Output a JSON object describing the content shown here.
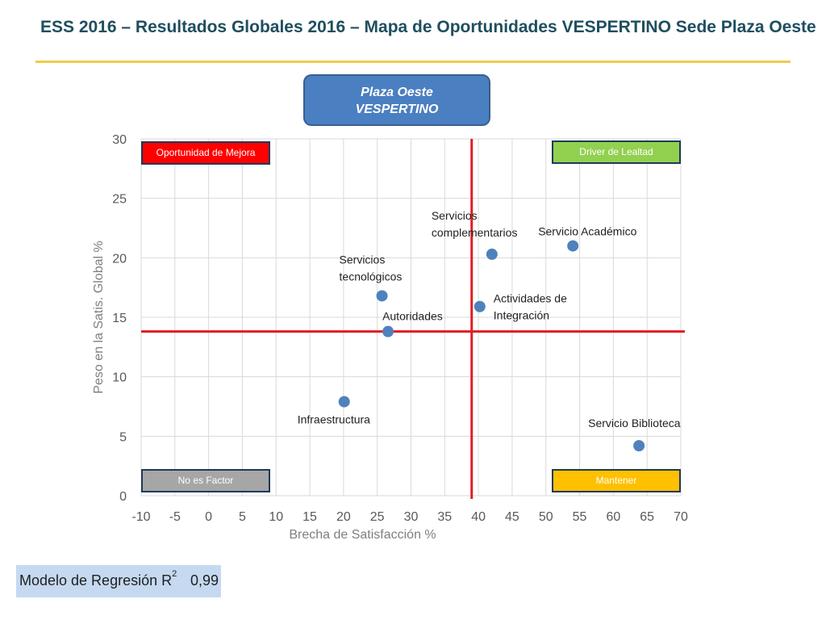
{
  "slide": {
    "title": "ESS 2016 – Resultados Globales 2016 – Mapa de Oportunidades VESPERTINO Sede Plaza Oeste",
    "badge_line1": "Plaza Oeste",
    "badge_line2": "VESPERTINO"
  },
  "model": {
    "label": "Modelo de Regresión R",
    "superscript": "2",
    "value": "0,99"
  },
  "quadrants": {
    "top_left": {
      "label": "Oportunidad de Mejora",
      "color": "#ff0000",
      "text_color": "#ffffff"
    },
    "top_right": {
      "label": "Driver de Lealtad",
      "color": "#92d050",
      "text_color": "#ffffff"
    },
    "bottom_left": {
      "label": "No es Factor",
      "color": "#a6a6a6",
      "text_color": "#ffffff"
    },
    "bottom_right": {
      "label": "Mantener",
      "color": "#ffc000",
      "text_color": "#ffffff"
    }
  },
  "chart_data": {
    "type": "scatter",
    "title": "",
    "xlabel": "Brecha de Satisfacción %",
    "ylabel": "Peso en la Satis. Global %",
    "xlim": [
      -10,
      70
    ],
    "ylim": [
      0,
      30
    ],
    "xticks": [
      -10,
      -5,
      0,
      5,
      10,
      15,
      20,
      25,
      30,
      35,
      40,
      45,
      50,
      55,
      60,
      65,
      70
    ],
    "yticks": [
      0,
      5,
      10,
      15,
      20,
      25,
      30
    ],
    "grid": true,
    "marker_color": "#4f81bd",
    "reference_lines": {
      "x": 39,
      "y": 13.8,
      "color": "#e31b23"
    },
    "points": [
      {
        "label": "Servicios complementarios",
        "x": 42,
        "y": 20.3
      },
      {
        "label": "Servicio Académico",
        "x": 54,
        "y": 21.0
      },
      {
        "label": "Servicios tecnológicos",
        "x": 25.7,
        "y": 16.8
      },
      {
        "label": "Actividades de Integración",
        "x": 40.2,
        "y": 15.9
      },
      {
        "label": "Autoridades",
        "x": 26.6,
        "y": 13.8
      },
      {
        "label": "Infraestructura",
        "x": 20.1,
        "y": 7.9
      },
      {
        "label": "Servicio Biblioteca",
        "x": 63.8,
        "y": 4.2
      }
    ]
  }
}
